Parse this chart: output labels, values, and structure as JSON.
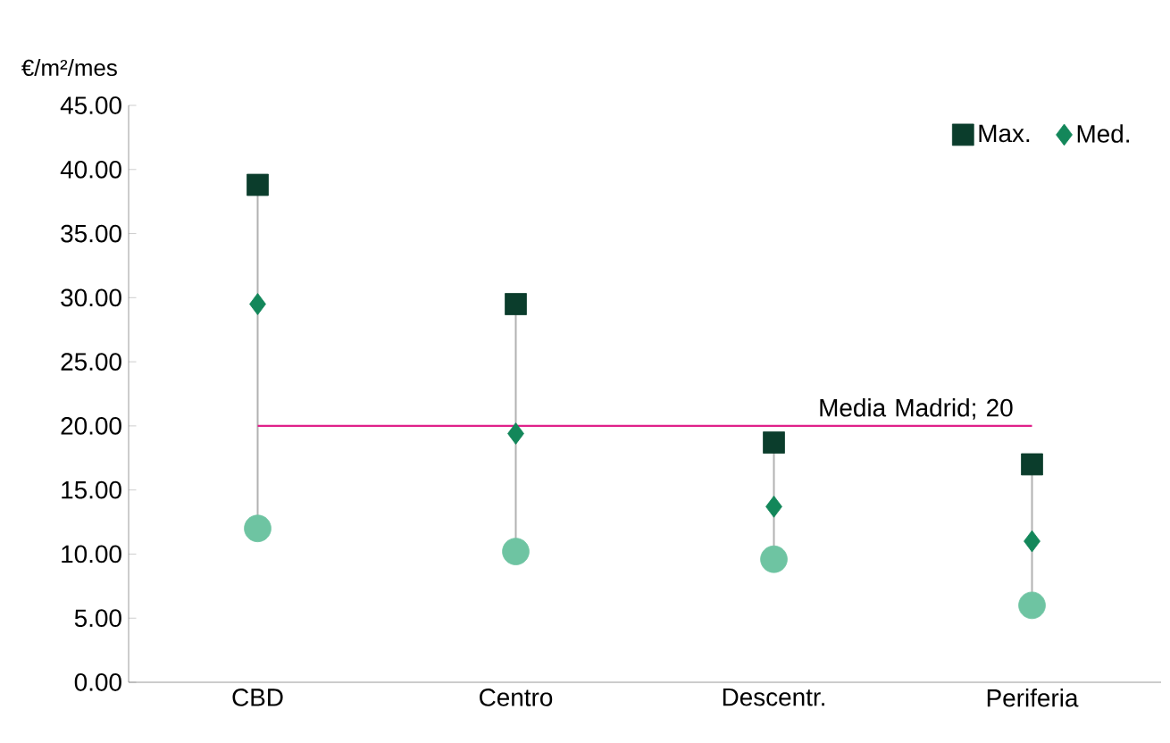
{
  "chart_data": {
    "type": "scatter",
    "ylabel": "€/m²/mes",
    "categories": [
      "CBD",
      "Centro",
      "Descentr.",
      "Periferia"
    ],
    "series": [
      {
        "name": "Max.",
        "color": "#0b3d2c",
        "marker": "square",
        "values": [
          38.8,
          29.5,
          18.7,
          17.0
        ]
      },
      {
        "name": "Med.",
        "color": "#13875a",
        "marker": "diamond",
        "values": [
          29.5,
          19.4,
          13.7,
          11.0
        ]
      },
      {
        "color": "#6ec4a2",
        "marker": "circle",
        "values": [
          12.0,
          10.2,
          9.6,
          6.0
        ]
      }
    ],
    "ylim": [
      0,
      45
    ],
    "yticks": [
      {
        "value": 0,
        "label": "0.00"
      },
      {
        "value": 5,
        "label": "5.00"
      },
      {
        "value": 10,
        "label": "10.00"
      },
      {
        "value": 15,
        "label": "15.00"
      },
      {
        "value": 20,
        "label": "20.00"
      },
      {
        "value": 25,
        "label": "25.00"
      },
      {
        "value": 30,
        "label": "30.00"
      },
      {
        "value": 35,
        "label": "35.00"
      },
      {
        "value": 40,
        "label": "40.00"
      },
      {
        "value": 45,
        "label": "45.00"
      }
    ],
    "ref_lines": [
      {
        "axis": "y",
        "value": 20,
        "label": "Media Madrid; 20",
        "color": "#e0218a"
      }
    ],
    "legend": "top right"
  }
}
